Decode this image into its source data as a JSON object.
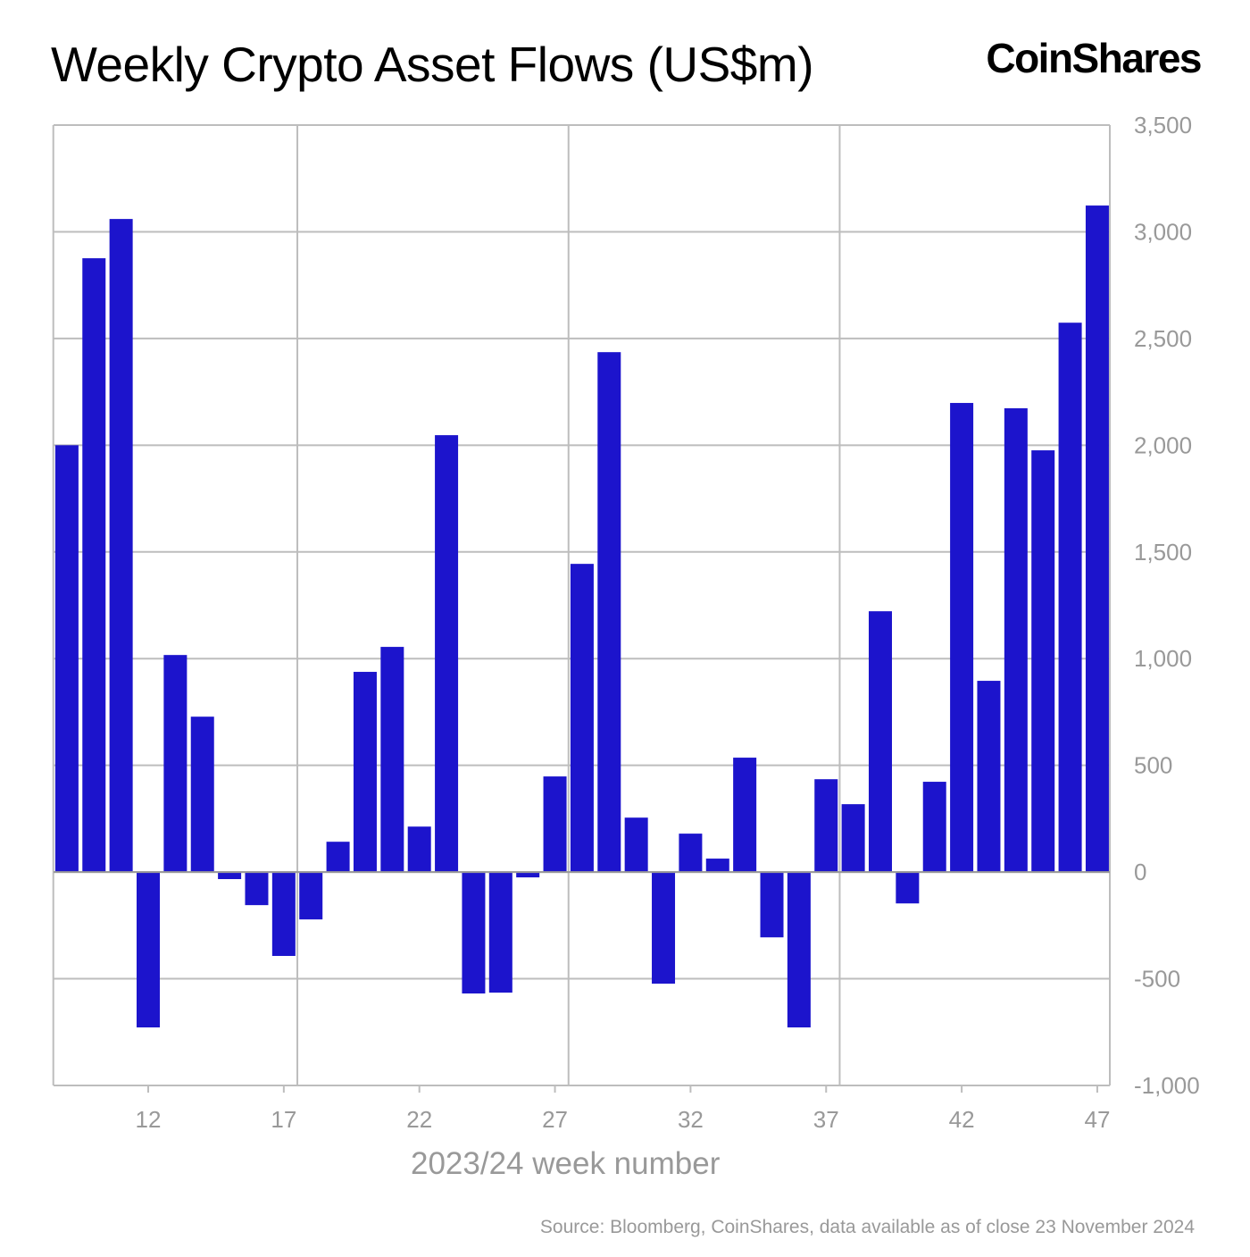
{
  "title": "Weekly Crypto Asset Flows (US$m)",
  "logo": "CoinShares",
  "source": "Source: Bloomberg, CoinShares, data available as of close 23 November 2024",
  "chart_data": {
    "type": "bar",
    "title": "Weekly Crypto Asset Flows (US$m)",
    "xlabel": "2023/24 week number",
    "ylabel": "",
    "ylim": [
      -1000,
      3500
    ],
    "y_ticks": [
      -1000,
      -500,
      0,
      500,
      1000,
      1500,
      2000,
      2500,
      3000,
      3500
    ],
    "y_tick_labels": [
      "-1,000",
      "-500",
      "0",
      "500",
      "1,000",
      "1,500",
      "2,000",
      "2,500",
      "3,000",
      "3,500"
    ],
    "y_axis_position": "right",
    "x_ticks": [
      12,
      17,
      22,
      27,
      32,
      37,
      42,
      47
    ],
    "x_tick_labels": [
      "12",
      "17",
      "22",
      "27",
      "32",
      "37",
      "42",
      "47"
    ],
    "grid": true,
    "bar_color": "#1c14cc",
    "categories": [
      9,
      10,
      11,
      12,
      13,
      14,
      15,
      16,
      17,
      18,
      19,
      20,
      21,
      22,
      23,
      24,
      25,
      26,
      27,
      28,
      29,
      30,
      31,
      32,
      33,
      34,
      35,
      36,
      37,
      38,
      39,
      40,
      41,
      42,
      43,
      44,
      45,
      46,
      47
    ],
    "values": [
      2000,
      2876,
      3060,
      -728,
      1017,
      728,
      -33,
      -155,
      -393,
      -222,
      142,
      938,
      1055,
      213,
      2047,
      -569,
      -565,
      -25,
      448,
      1444,
      2436,
      255,
      -523,
      180,
      63,
      536,
      -306,
      -728,
      435,
      318,
      1222,
      -147,
      423,
      2198,
      896,
      2173,
      1976,
      2574,
      3123
    ]
  }
}
